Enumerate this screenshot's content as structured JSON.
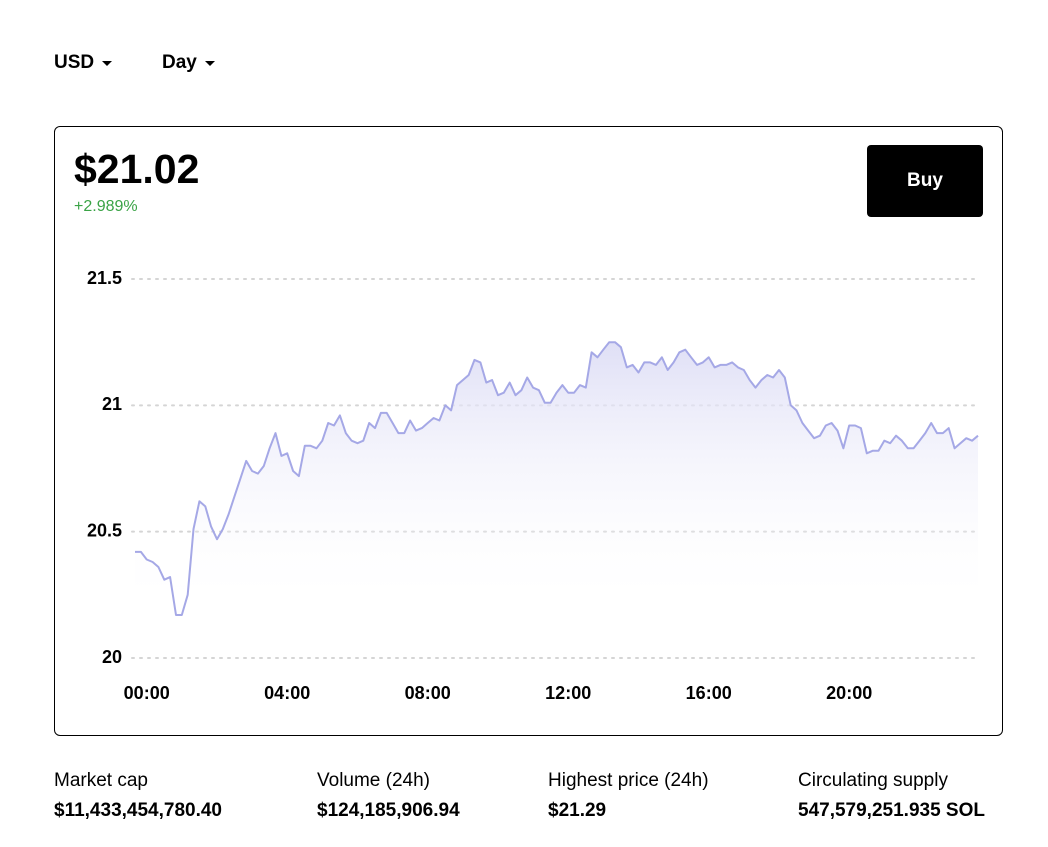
{
  "header": {
    "currency": "USD",
    "period": "Day"
  },
  "price": "$21.02",
  "change": "+2.989%",
  "buy_button": "Buy",
  "chart_data": {
    "type": "line",
    "x": [
      -20,
      -10,
      0,
      10,
      20,
      30,
      40,
      50,
      60,
      70,
      80,
      90,
      100,
      110,
      120,
      130,
      140,
      150,
      160,
      170,
      180,
      190,
      200,
      210,
      220,
      230,
      240,
      250,
      260,
      270,
      280,
      290,
      300,
      310,
      320,
      330,
      340,
      350,
      360,
      370,
      380,
      390,
      400,
      410,
      420,
      430,
      440,
      450,
      460,
      470,
      480,
      490,
      500,
      510,
      520,
      530,
      540,
      550,
      560,
      570,
      580,
      590,
      600,
      610,
      620,
      630,
      640,
      650,
      660,
      670,
      680,
      690,
      700,
      710,
      720,
      730,
      740,
      750,
      760,
      770,
      780,
      790,
      800,
      810,
      820,
      830,
      840,
      850,
      860,
      870,
      880,
      890,
      900,
      910,
      920,
      930,
      940,
      950,
      960,
      970,
      980,
      990,
      1000,
      1010,
      1020,
      1030,
      1040,
      1050,
      1060,
      1070,
      1080,
      1090,
      1100,
      1110,
      1120,
      1130,
      1140,
      1150,
      1160,
      1170,
      1180,
      1190,
      1200,
      1210,
      1220,
      1230,
      1240,
      1250,
      1260,
      1270,
      1280,
      1290,
      1300,
      1310,
      1320,
      1330,
      1340,
      1350,
      1360,
      1370,
      1380,
      1390,
      1400,
      1410,
      1420
    ],
    "values": [
      20.42,
      20.42,
      20.39,
      20.38,
      20.36,
      20.31,
      20.32,
      20.17,
      20.17,
      20.25,
      20.51,
      20.62,
      20.6,
      20.52,
      20.47,
      20.51,
      20.57,
      20.64,
      20.71,
      20.78,
      20.74,
      20.73,
      20.76,
      20.83,
      20.89,
      20.8,
      20.81,
      20.74,
      20.72,
      20.84,
      20.84,
      20.83,
      20.86,
      20.93,
      20.92,
      20.96,
      20.89,
      20.86,
      20.85,
      20.86,
      20.93,
      20.91,
      20.97,
      20.97,
      20.93,
      20.89,
      20.89,
      20.94,
      20.9,
      20.91,
      20.93,
      20.95,
      20.94,
      21.0,
      20.98,
      21.08,
      21.1,
      21.12,
      21.18,
      21.17,
      21.09,
      21.1,
      21.04,
      21.05,
      21.09,
      21.04,
      21.06,
      21.11,
      21.07,
      21.06,
      21.01,
      21.01,
      21.05,
      21.08,
      21.05,
      21.05,
      21.08,
      21.07,
      21.21,
      21.19,
      21.22,
      21.25,
      21.25,
      21.23,
      21.15,
      21.16,
      21.13,
      21.17,
      21.17,
      21.16,
      21.19,
      21.14,
      21.17,
      21.21,
      21.22,
      21.19,
      21.16,
      21.17,
      21.19,
      21.15,
      21.16,
      21.16,
      21.17,
      21.15,
      21.14,
      21.1,
      21.07,
      21.1,
      21.12,
      21.11,
      21.14,
      21.11,
      21.0,
      20.98,
      20.93,
      20.9,
      20.87,
      20.88,
      20.92,
      20.93,
      20.9,
      20.83,
      20.92,
      20.92,
      20.91,
      20.81,
      20.82,
      20.82,
      20.86,
      20.85,
      20.88,
      20.86,
      20.83,
      20.83,
      20.86,
      20.89,
      20.93,
      20.89,
      20.89,
      20.91,
      20.83,
      20.85,
      20.87,
      20.86,
      20.88
    ],
    "color": "#a5a8e6",
    "xlim": [
      -20,
      1420
    ],
    "xticks": [
      {
        "value": 0,
        "label": "00:00"
      },
      {
        "value": 240,
        "label": "04:00"
      },
      {
        "value": 480,
        "label": "08:00"
      },
      {
        "value": 720,
        "label": "12:00"
      },
      {
        "value": 960,
        "label": "16:00"
      },
      {
        "value": 1200,
        "label": "20:00"
      }
    ],
    "ylim": [
      20,
      21.5
    ],
    "yticks": [
      20,
      20.5,
      21,
      21.5
    ],
    "grid": true
  },
  "stats": [
    {
      "label": "Market cap",
      "value": "$11,433,454,780.40"
    },
    {
      "label": "Volume (24h)",
      "value": "$124,185,906.94"
    },
    {
      "label": "Highest price (24h)",
      "value": "$21.29"
    },
    {
      "label": "Circulating supply",
      "value": "547,579,251.935 SOL"
    }
  ]
}
